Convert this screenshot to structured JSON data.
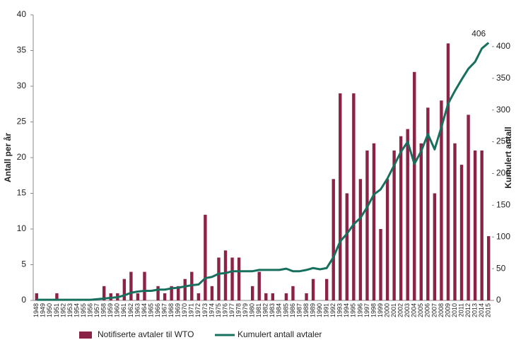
{
  "chart_data": {
    "type": "bar_line",
    "ylabel": "Antall per år",
    "y2label": "Kumulert antall",
    "categories": [
      "1948",
      "1949",
      "1950",
      "1951",
      "1952",
      "1953",
      "1954",
      "1955",
      "1956",
      "1957",
      "1958",
      "1959",
      "1960",
      "1961",
      "1962",
      "1963",
      "1964",
      "1965",
      "1966",
      "1967",
      "1968",
      "1969",
      "1970",
      "1971",
      "1972",
      "1973",
      "1974",
      "1975",
      "1976",
      "1977",
      "1978",
      "1979",
      "1980",
      "1981",
      "1982",
      "1983",
      "1984",
      "1985",
      "1986",
      "1987",
      "1988",
      "1989",
      "1990",
      "1991",
      "1992",
      "1993",
      "1994",
      "1995",
      "1996",
      "1997",
      "1998",
      "1999",
      "2000",
      "2001",
      "2002",
      "2003",
      "2004",
      "2005",
      "2006",
      "2007",
      "2008",
      "2009",
      "2010",
      "2011",
      "2012",
      "2013",
      "2014",
      "2015"
    ],
    "series": [
      {
        "name": "Notifiserte avtaler til WTO",
        "kind": "bar",
        "color": "#8b2346",
        "axis": "y",
        "values": [
          1,
          0,
          0,
          1,
          0,
          0,
          0,
          0,
          0,
          0,
          2,
          1,
          1,
          3,
          4,
          1,
          4,
          0,
          2,
          1,
          2,
          2,
          3,
          4,
          1,
          12,
          2,
          6,
          7,
          6,
          6,
          0,
          2,
          4,
          1,
          1,
          0,
          1,
          2,
          0,
          1,
          3,
          0,
          3,
          17,
          29,
          15,
          29,
          17,
          21,
          22,
          10,
          17,
          21,
          23,
          24,
          32,
          22,
          27,
          15,
          28,
          36,
          22,
          19,
          26,
          21,
          21,
          9
        ]
      },
      {
        "name": "Kumulert antall avtaler",
        "kind": "line",
        "color": "#17705e",
        "axis": "y2",
        "data_label": "last",
        "values": [
          1,
          1,
          1,
          1,
          1,
          1,
          1,
          1,
          1,
          2,
          3,
          4,
          5,
          8,
          12,
          14,
          15,
          15,
          17,
          17,
          19,
          20,
          22,
          24,
          25,
          35,
          37,
          42,
          43,
          46,
          46,
          46,
          46,
          48,
          48,
          48,
          48,
          50,
          46,
          46,
          48,
          51,
          49,
          51,
          68,
          93,
          105,
          120,
          130,
          147,
          167,
          175,
          192,
          213,
          234,
          250,
          215,
          235,
          262,
          238,
          273,
          310,
          330,
          348,
          365,
          376,
          397,
          406
        ]
      }
    ],
    "ylim": [
      0,
      40
    ],
    "yticks": [
      0,
      5,
      10,
      15,
      20,
      25,
      30,
      35,
      40
    ],
    "y2lim": [
      0,
      450
    ],
    "y2ticks": [
      0,
      50,
      100,
      150,
      200,
      250,
      300,
      350,
      400
    ],
    "legend": "bottom"
  }
}
